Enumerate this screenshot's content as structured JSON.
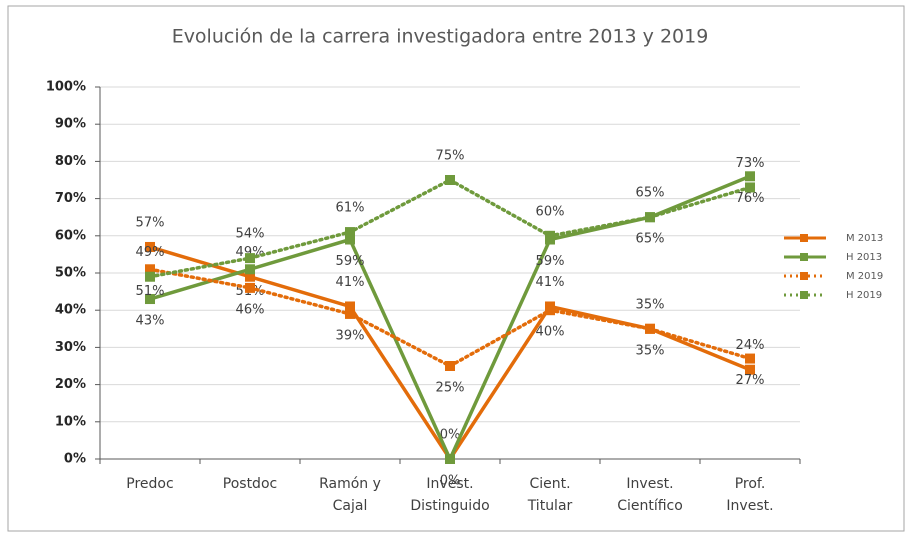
{
  "chart_data": {
    "type": "line",
    "title": "Evolución de la carrera investigadora entre 2013 y 2019",
    "categories": [
      "Predoc",
      "Postdoc",
      "Ramón y\nCajal",
      "Invest.\nDistinguido",
      "Cient.\nTitular",
      "Invest.\nCientífico",
      "Prof.\nInvest."
    ],
    "series": [
      {
        "name": "M 2013",
        "color": "#e36c0a",
        "dash": false,
        "values": [
          57,
          49,
          41,
          0,
          41,
          35,
          24
        ],
        "value_labels": [
          "57%",
          "49%",
          "41%",
          "0%",
          "41%",
          "35%",
          "24%"
        ]
      },
      {
        "name": "H 2013",
        "color": "#6f9a3c",
        "dash": false,
        "values": [
          43,
          51,
          59,
          0,
          59,
          65,
          76
        ],
        "value_labels": [
          "43%",
          "51%",
          "59%",
          "0%",
          "59%",
          "65%",
          "76%"
        ]
      },
      {
        "name": "M 2019",
        "color": "#e36c0a",
        "dash": true,
        "values": [
          51,
          46,
          39,
          25,
          40,
          35,
          27
        ],
        "value_labels": [
          "51%",
          "46%",
          "39%",
          "25%",
          "40%",
          "35%",
          "27%"
        ]
      },
      {
        "name": "H 2019",
        "color": "#6f9a3c",
        "dash": true,
        "values": [
          49,
          54,
          61,
          75,
          60,
          65,
          73
        ],
        "value_labels": [
          "49%",
          "54%",
          "61%",
          "75%",
          "60%",
          "65%",
          "73%"
        ]
      }
    ],
    "ylim": [
      0,
      100
    ],
    "yticks": [
      {
        "value": 0,
        "label": "0%"
      },
      {
        "value": 10,
        "label": "10%"
      },
      {
        "value": 20,
        "label": "20%"
      },
      {
        "value": 30,
        "label": "30%"
      },
      {
        "value": 40,
        "label": "40%"
      },
      {
        "value": 50,
        "label": "50%"
      },
      {
        "value": 60,
        "label": "60%"
      },
      {
        "value": 70,
        "label": "70%"
      },
      {
        "value": 80,
        "label": "80%"
      },
      {
        "value": 90,
        "label": "90%"
      },
      {
        "value": 100,
        "label": "100%"
      }
    ],
    "grid": true,
    "legend": "right"
  }
}
